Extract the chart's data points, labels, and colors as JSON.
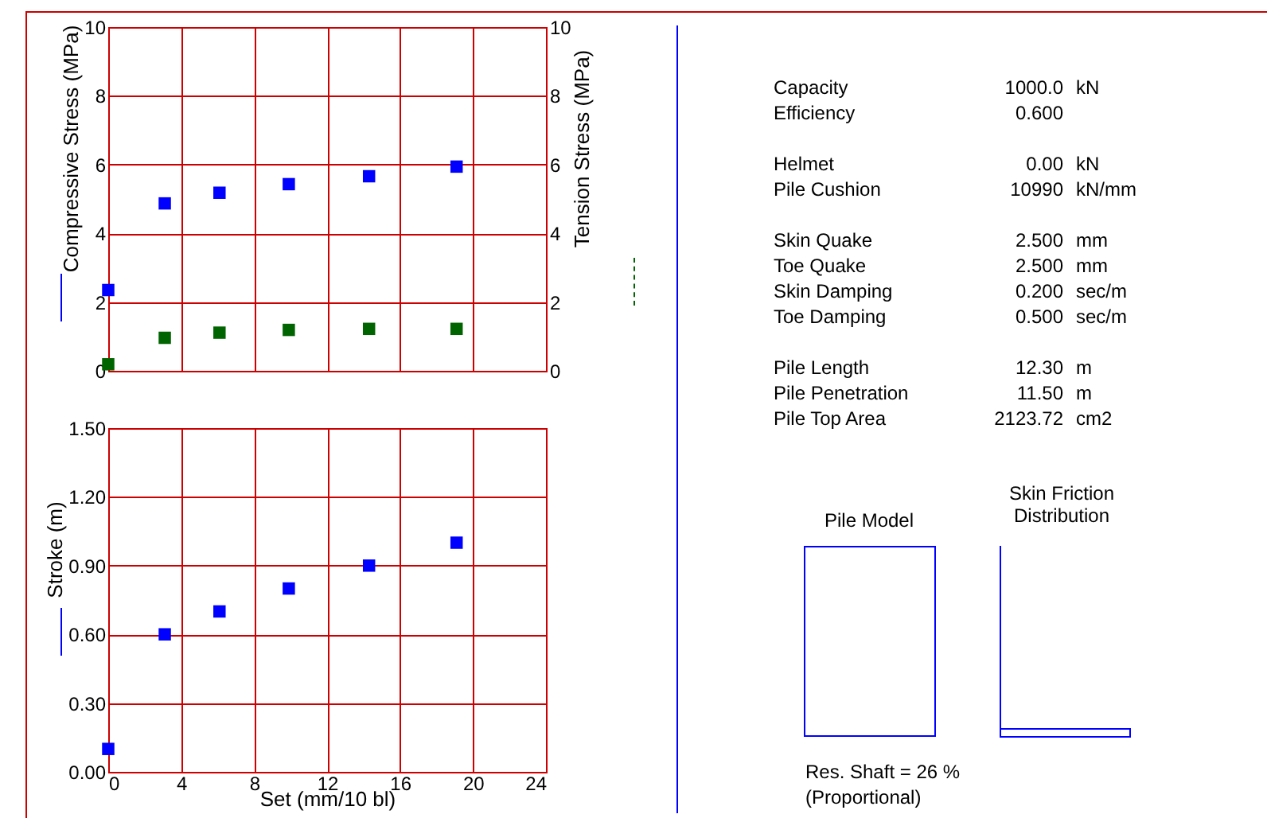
{
  "chart_data": [
    {
      "type": "scatter",
      "ylabel": "Compressive Stress (MPa)",
      "y2label": "Tension Stress (MPa)",
      "x": [
        0,
        3.1,
        6.1,
        9.9,
        14.3,
        19.1
      ],
      "xlim": [
        0,
        24
      ],
      "xticks": [
        0,
        4,
        8,
        12,
        16,
        20,
        24
      ],
      "ylim": [
        0,
        10
      ],
      "yticks": [
        0,
        2,
        4,
        6,
        8,
        10
      ],
      "y2lim": [
        0,
        10
      ],
      "y2ticks": [
        0,
        2,
        4,
        6,
        8,
        10
      ],
      "tick_labels": "y",
      "grid": true,
      "marker": "square",
      "series": [
        {
          "color": "#0000ff",
          "values": [
            2.35,
            4.87,
            5.18,
            5.43,
            5.66,
            5.94
          ],
          "line_style": "solid"
        },
        {
          "color": "#006400",
          "values": [
            0.19,
            0.96,
            1.11,
            1.19,
            1.22,
            1.22
          ],
          "axis": "y2",
          "line_style": "dashed"
        }
      ]
    },
    {
      "type": "scatter",
      "ylabel": "Stroke (m)",
      "xlabel": "Set (mm/10 bl)",
      "x": [
        0,
        3.1,
        6.1,
        9.9,
        14.3,
        19.1
      ],
      "xlim": [
        0,
        24
      ],
      "xticks": [
        0,
        4,
        8,
        12,
        16,
        20,
        24
      ],
      "ylim": [
        0,
        1.5
      ],
      "yticks": [
        {
          "value": 0,
          "label": "0.00"
        },
        {
          "value": 0.3,
          "label": "0.30"
        },
        {
          "value": 0.6,
          "label": "0.60"
        },
        {
          "value": 0.9,
          "label": "0.90"
        },
        {
          "value": 1.2,
          "label": "1.20"
        },
        {
          "value": 1.5,
          "label": "1.50"
        }
      ],
      "grid": true,
      "marker": "square",
      "series": [
        {
          "color": "#0000ff",
          "values": [
            0.1,
            0.6,
            0.7,
            0.8,
            0.9,
            1.0
          ],
          "line_style": "solid"
        }
      ]
    },
    {
      "type": "other",
      "annotations": [
        "Capacity\t1000.0\tkN",
        "Efficiency\t0.600\t",
        "Helmet\t0.00\tkN",
        "Pile Cushion\t10990\tkN/mm",
        "Skin Quake\t2.500\tmm",
        "Toe Quake\t2.500\tmm",
        "Skin Damping\t0.200\tsec/m",
        "Toe Damping\t0.500\tsec/m",
        "Pile Length\t12.30\tm",
        "Pile Penetration\t11.50\tm",
        "Pile Top Area\t2123.72\tcm2",
        "Pile Model",
        "Skin Friction Distribution",
        "Res. Shaft = 26 %",
        "(Proportional)"
      ]
    }
  ]
}
